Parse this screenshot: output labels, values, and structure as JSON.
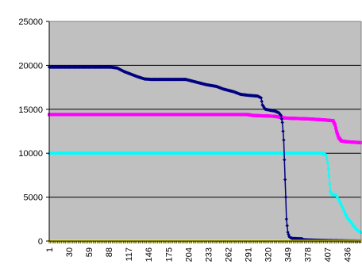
{
  "chart_data": {
    "type": "line",
    "title": "",
    "xlabel": "",
    "ylabel": "",
    "x_range": [
      1,
      456
    ],
    "xticks": [
      1,
      30,
      59,
      88,
      117,
      146,
      175,
      204,
      233,
      262,
      291,
      320,
      349,
      378,
      407,
      436
    ],
    "ylim": [
      0,
      25000
    ],
    "yticks": [
      0,
      5000,
      10000,
      15000,
      20000,
      25000
    ],
    "grid": true,
    "legend": "none",
    "plot_background": "#c0c0c0",
    "series": [
      {
        "color": "#000080",
        "marker": "diamond",
        "points": [
          [
            1,
            19800
          ],
          [
            90,
            19800
          ],
          [
            100,
            19700
          ],
          [
            110,
            19300
          ],
          [
            120,
            19000
          ],
          [
            130,
            18700
          ],
          [
            140,
            18450
          ],
          [
            150,
            18400
          ],
          [
            200,
            18400
          ],
          [
            210,
            18200
          ],
          [
            220,
            18000
          ],
          [
            230,
            17800
          ],
          [
            245,
            17600
          ],
          [
            255,
            17300
          ],
          [
            270,
            17000
          ],
          [
            280,
            16700
          ],
          [
            290,
            16600
          ],
          [
            305,
            16500
          ],
          [
            310,
            16300
          ],
          [
            312,
            15500
          ],
          [
            316,
            15000
          ],
          [
            330,
            14800
          ],
          [
            336,
            14600
          ],
          [
            339,
            14300
          ],
          [
            341,
            13500
          ],
          [
            343,
            11500
          ],
          [
            345,
            7000
          ],
          [
            346,
            5000
          ],
          [
            347,
            2500
          ],
          [
            349,
            1000
          ],
          [
            351,
            500
          ],
          [
            355,
            300
          ],
          [
            370,
            250
          ],
          [
            372,
            150
          ],
          [
            390,
            100
          ],
          [
            410,
            60
          ],
          [
            440,
            20
          ],
          [
            456,
            0
          ]
        ]
      },
      {
        "color": "#ff00ff",
        "marker": "square",
        "points": [
          [
            1,
            14400
          ],
          [
            290,
            14400
          ],
          [
            298,
            14300
          ],
          [
            330,
            14200
          ],
          [
            345,
            14000
          ],
          [
            380,
            13900
          ],
          [
            400,
            13800
          ],
          [
            415,
            13700
          ],
          [
            418,
            13200
          ],
          [
            420,
            12500
          ],
          [
            423,
            11800
          ],
          [
            427,
            11400
          ],
          [
            435,
            11300
          ],
          [
            456,
            11200
          ]
        ]
      },
      {
        "color": "#00ffff",
        "marker": "triangle",
        "points": [
          [
            1,
            10000
          ],
          [
            400,
            10000
          ],
          [
            405,
            9800
          ],
          [
            407,
            9000
          ],
          [
            409,
            7500
          ],
          [
            411,
            5700
          ],
          [
            414,
            5300
          ],
          [
            420,
            5200
          ],
          [
            424,
            4700
          ],
          [
            428,
            4000
          ],
          [
            432,
            3300
          ],
          [
            436,
            2700
          ],
          [
            440,
            2300
          ],
          [
            445,
            1800
          ],
          [
            450,
            1300
          ],
          [
            456,
            1000
          ]
        ]
      },
      {
        "color": "#ffff00",
        "marker": "x",
        "points": [
          [
            1,
            0
          ],
          [
            456,
            0
          ]
        ]
      }
    ]
  }
}
